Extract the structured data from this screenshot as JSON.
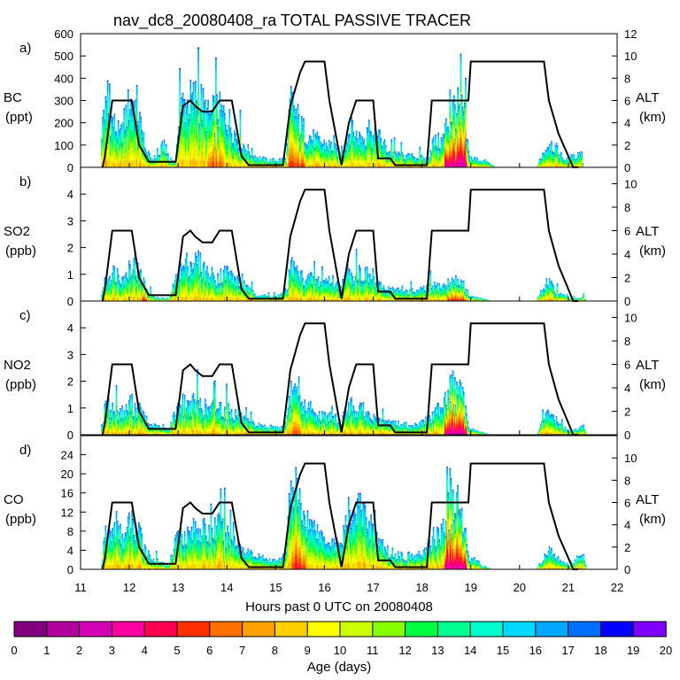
{
  "chart_data": {
    "type": "area",
    "title": "nav_dc8_20080408_ra TOTAL PASSIVE TRACER",
    "xlabel": "Hours past 0 UTC on 20080408",
    "xlim": [
      11,
      22
    ],
    "x_ticks": [
      "11",
      "12",
      "13",
      "14",
      "15",
      "16",
      "17",
      "18",
      "19",
      "20",
      "21",
      "22"
    ],
    "altitude_profile": {
      "name": "ALT (km)",
      "x": [
        11.45,
        11.5,
        11.65,
        12.05,
        12.2,
        12.4,
        12.5,
        12.7,
        12.8,
        12.95,
        13.1,
        13.25,
        13.35,
        13.5,
        13.7,
        13.85,
        14.1,
        14.3,
        14.45,
        14.7,
        14.95,
        15.15,
        15.3,
        15.5,
        15.6,
        16.0,
        16.1,
        16.35,
        16.5,
        16.65,
        16.8,
        17.0,
        17.1,
        17.35,
        17.45,
        17.95,
        18.1,
        18.2,
        18.3,
        18.55,
        18.6,
        18.7,
        18.75,
        18.95,
        19.0,
        20.5,
        20.6,
        20.8,
        20.95,
        21.1,
        21.2
      ],
      "alt_km": [
        0,
        1,
        6,
        6,
        2,
        0.5,
        0.5,
        0.5,
        0.5,
        0.5,
        5.5,
        6,
        5.5,
        5,
        5,
        6,
        6,
        1,
        0.2,
        0.2,
        0.2,
        0.2,
        5.5,
        8.5,
        9.5,
        9.5,
        6,
        0.2,
        4,
        6,
        6,
        6,
        0.8,
        0.8,
        0.2,
        0.2,
        0.2,
        6,
        6,
        6,
        6,
        6,
        6,
        6,
        9.5,
        9.5,
        6,
        3,
        1.5,
        0,
        0
      ]
    },
    "age_scale": {
      "label": "Age (days)",
      "ticks": [
        "0",
        "1",
        "2",
        "3",
        "4",
        "5",
        "6",
        "7",
        "8",
        "9",
        "10",
        "11",
        "12",
        "13",
        "14",
        "15",
        "16",
        "17",
        "18",
        "19",
        "20"
      ],
      "colors": [
        "#800080",
        "#b0009e",
        "#d400b4",
        "#ff00a0",
        "#ff0050",
        "#ff3000",
        "#ff7000",
        "#ffa000",
        "#ffd000",
        "#ffff00",
        "#ccff00",
        "#88ff00",
        "#00ff40",
        "#00ff90",
        "#00ffd0",
        "#00d8ff",
        "#00a8ff",
        "#0070ff",
        "#0000ff",
        "#8000ff"
      ]
    },
    "panels": [
      {
        "label": "a)",
        "species": "BC",
        "units": "(ppt)",
        "ylim": [
          0,
          600
        ],
        "y_ticks": [
          "0",
          "100",
          "200",
          "300",
          "400",
          "500",
          "600"
        ],
        "alt_ticks": [
          "0",
          "2",
          "4",
          "6",
          "8",
          "10",
          "12"
        ],
        "alt_max": 12,
        "alt_label": "ALT",
        "alt_units": "(km)",
        "anchors": [
          [
            11.4,
            0
          ],
          [
            11.45,
            300
          ],
          [
            11.6,
            250
          ],
          [
            11.8,
            150
          ],
          [
            12.0,
            330
          ],
          [
            12.15,
            300
          ],
          [
            12.3,
            80
          ],
          [
            12.45,
            40
          ],
          [
            12.6,
            60
          ],
          [
            12.7,
            120
          ],
          [
            12.8,
            30
          ],
          [
            12.95,
            30
          ],
          [
            13.0,
            300
          ],
          [
            13.2,
            320
          ],
          [
            13.4,
            350
          ],
          [
            13.6,
            250
          ],
          [
            13.8,
            280
          ],
          [
            14.0,
            240
          ],
          [
            14.2,
            150
          ],
          [
            14.4,
            90
          ],
          [
            14.6,
            50
          ],
          [
            14.8,
            35
          ],
          [
            15.0,
            35
          ],
          [
            15.2,
            40
          ],
          [
            15.3,
            330
          ],
          [
            15.5,
            200
          ],
          [
            15.7,
            150
          ],
          [
            15.9,
            120
          ],
          [
            16.1,
            110
          ],
          [
            16.3,
            70
          ],
          [
            16.5,
            180
          ],
          [
            16.7,
            150
          ],
          [
            16.9,
            150
          ],
          [
            17.1,
            150
          ],
          [
            17.3,
            80
          ],
          [
            17.6,
            55
          ],
          [
            17.9,
            50
          ],
          [
            18.1,
            40
          ],
          [
            18.2,
            120
          ],
          [
            18.4,
            130
          ],
          [
            18.5,
            220
          ],
          [
            18.65,
            300
          ],
          [
            18.85,
            270
          ],
          [
            18.95,
            50
          ],
          [
            19.1,
            40
          ],
          [
            19.3,
            30
          ],
          [
            19.5,
            0
          ],
          [
            20.35,
            0
          ],
          [
            20.4,
            40
          ],
          [
            20.6,
            130
          ],
          [
            20.8,
            70
          ],
          [
            20.9,
            40
          ],
          [
            21.1,
            50
          ],
          [
            21.25,
            80
          ],
          [
            21.3,
            0
          ]
        ],
        "warm_hours": [
          [
            18.45,
            18.9,
            0.9
          ],
          [
            15.25,
            15.6,
            0.4
          ],
          [
            13.6,
            13.9,
            0.3
          ]
        ]
      },
      {
        "label": "b)",
        "species": "SO2",
        "units": "(ppb)",
        "ylim": [
          0,
          5
        ],
        "y_ticks": [
          "0",
          "1",
          "2",
          "3",
          "4"
        ],
        "alt_ticks": [
          "0",
          "2",
          "4",
          "6",
          "8",
          "10"
        ],
        "alt_max": 11.4,
        "alt_label": "ALT",
        "alt_units": "(km)",
        "anchors": [
          [
            11.4,
            0
          ],
          [
            11.5,
            1.0
          ],
          [
            11.7,
            1.2
          ],
          [
            11.9,
            0.9
          ],
          [
            12.0,
            1.6
          ],
          [
            12.2,
            1.1
          ],
          [
            12.4,
            0.3
          ],
          [
            12.6,
            0.1
          ],
          [
            12.8,
            0.1
          ],
          [
            13.0,
            1.2
          ],
          [
            13.2,
            1.6
          ],
          [
            13.4,
            1.6
          ],
          [
            13.6,
            1.1
          ],
          [
            13.8,
            1.0
          ],
          [
            14.0,
            1.2
          ],
          [
            14.2,
            0.8
          ],
          [
            14.4,
            0.5
          ],
          [
            14.6,
            0.3
          ],
          [
            14.8,
            0.2
          ],
          [
            15.0,
            0.2
          ],
          [
            15.2,
            0.3
          ],
          [
            15.3,
            1.5
          ],
          [
            15.5,
            1.0
          ],
          [
            15.7,
            0.9
          ],
          [
            15.9,
            0.8
          ],
          [
            16.1,
            0.9
          ],
          [
            16.3,
            0.6
          ],
          [
            16.5,
            1.1
          ],
          [
            16.7,
            1.2
          ],
          [
            16.9,
            1.0
          ],
          [
            17.1,
            0.6
          ],
          [
            17.3,
            0.5
          ],
          [
            17.6,
            0.4
          ],
          [
            17.9,
            0.4
          ],
          [
            18.2,
            0.6
          ],
          [
            18.4,
            0.6
          ],
          [
            18.6,
            0.8
          ],
          [
            18.8,
            0.8
          ],
          [
            18.95,
            0.2
          ],
          [
            19.2,
            0.1
          ],
          [
            19.4,
            0
          ],
          [
            20.35,
            0
          ],
          [
            20.4,
            0.3
          ],
          [
            20.6,
            0.7
          ],
          [
            20.8,
            0.3
          ],
          [
            21.0,
            0.1
          ],
          [
            21.3,
            0.15
          ],
          [
            21.35,
            0
          ]
        ],
        "warm_hours": [
          [
            18.5,
            18.9,
            0.5
          ],
          [
            12.25,
            12.35,
            0.6
          ]
        ]
      },
      {
        "label": "c)",
        "species": "NO2",
        "units": "(ppb)",
        "ylim": [
          0,
          5
        ],
        "y_ticks": [
          "0",
          "1",
          "2",
          "3",
          "4"
        ],
        "alt_ticks": [
          "0",
          "2",
          "4",
          "6",
          "8",
          "10"
        ],
        "alt_max": 11.4,
        "alt_label": "ALT",
        "alt_units": "(km)",
        "anchors": [
          [
            11.4,
            0
          ],
          [
            11.5,
            1.2
          ],
          [
            11.7,
            1.0
          ],
          [
            11.9,
            0.9
          ],
          [
            12.0,
            1.3
          ],
          [
            12.2,
            1.0
          ],
          [
            12.4,
            0.4
          ],
          [
            12.6,
            0.3
          ],
          [
            12.8,
            0.2
          ],
          [
            13.0,
            1.3
          ],
          [
            13.2,
            1.2
          ],
          [
            13.4,
            1.3
          ],
          [
            13.6,
            1.0
          ],
          [
            13.8,
            1.2
          ],
          [
            14.0,
            1.0
          ],
          [
            14.2,
            0.8
          ],
          [
            14.4,
            0.5
          ],
          [
            14.6,
            0.4
          ],
          [
            14.8,
            0.3
          ],
          [
            15.0,
            0.3
          ],
          [
            15.2,
            0.3
          ],
          [
            15.3,
            1.8
          ],
          [
            15.5,
            1.3
          ],
          [
            15.7,
            0.9
          ],
          [
            15.9,
            0.8
          ],
          [
            16.1,
            0.7
          ],
          [
            16.3,
            0.5
          ],
          [
            16.5,
            1.2
          ],
          [
            16.7,
            1.0
          ],
          [
            16.9,
            0.8
          ],
          [
            17.1,
            0.5
          ],
          [
            17.3,
            0.5
          ],
          [
            17.6,
            0.4
          ],
          [
            17.9,
            0.4
          ],
          [
            18.2,
            0.7
          ],
          [
            18.4,
            1.4
          ],
          [
            18.6,
            2.0
          ],
          [
            18.8,
            1.7
          ],
          [
            18.95,
            0.3
          ],
          [
            19.2,
            0.1
          ],
          [
            19.4,
            0
          ],
          [
            20.35,
            0
          ],
          [
            20.4,
            0.3
          ],
          [
            20.6,
            1.0
          ],
          [
            20.8,
            0.4
          ],
          [
            21.0,
            0.15
          ],
          [
            21.3,
            0.35
          ],
          [
            21.35,
            0
          ]
        ],
        "warm_hours": [
          [
            18.45,
            18.9,
            0.9
          ],
          [
            15.3,
            15.5,
            0.3
          ]
        ]
      },
      {
        "label": "d)",
        "species": "CO",
        "units": "(ppb)",
        "ylim": [
          0,
          28
        ],
        "y_ticks": [
          "0",
          "4",
          "8",
          "12",
          "16",
          "20",
          "24"
        ],
        "alt_ticks": [
          "0",
          "2",
          "4",
          "6",
          "8",
          "10"
        ],
        "alt_max": 12,
        "alt_label": "ALT",
        "alt_units": "(km)",
        "anchors": [
          [
            11.4,
            0
          ],
          [
            11.5,
            8
          ],
          [
            11.7,
            9
          ],
          [
            11.9,
            7
          ],
          [
            12.0,
            11
          ],
          [
            12.2,
            8
          ],
          [
            12.4,
            3
          ],
          [
            12.6,
            1.5
          ],
          [
            12.8,
            1
          ],
          [
            13.0,
            9
          ],
          [
            13.2,
            8
          ],
          [
            13.4,
            10
          ],
          [
            13.6,
            8
          ],
          [
            13.8,
            10
          ],
          [
            14.0,
            8
          ],
          [
            14.2,
            6
          ],
          [
            14.4,
            4
          ],
          [
            14.6,
            3
          ],
          [
            14.8,
            2
          ],
          [
            15.0,
            2
          ],
          [
            15.2,
            3
          ],
          [
            15.3,
            22
          ],
          [
            15.5,
            14
          ],
          [
            15.7,
            10
          ],
          [
            15.9,
            8
          ],
          [
            16.1,
            7
          ],
          [
            16.3,
            5
          ],
          [
            16.5,
            13
          ],
          [
            16.7,
            14
          ],
          [
            16.9,
            11
          ],
          [
            17.1,
            6
          ],
          [
            17.3,
            4
          ],
          [
            17.6,
            3
          ],
          [
            17.9,
            3
          ],
          [
            18.2,
            6
          ],
          [
            18.4,
            9
          ],
          [
            18.6,
            16
          ],
          [
            18.8,
            13
          ],
          [
            18.95,
            3
          ],
          [
            19.2,
            1
          ],
          [
            19.4,
            0
          ],
          [
            20.35,
            0
          ],
          [
            20.4,
            1.5
          ],
          [
            20.6,
            4
          ],
          [
            20.8,
            2
          ],
          [
            21.0,
            1
          ],
          [
            21.3,
            3
          ],
          [
            21.35,
            0
          ]
        ],
        "warm_hours": [
          [
            18.45,
            18.9,
            0.9
          ],
          [
            15.3,
            15.6,
            0.5
          ]
        ]
      }
    ]
  }
}
